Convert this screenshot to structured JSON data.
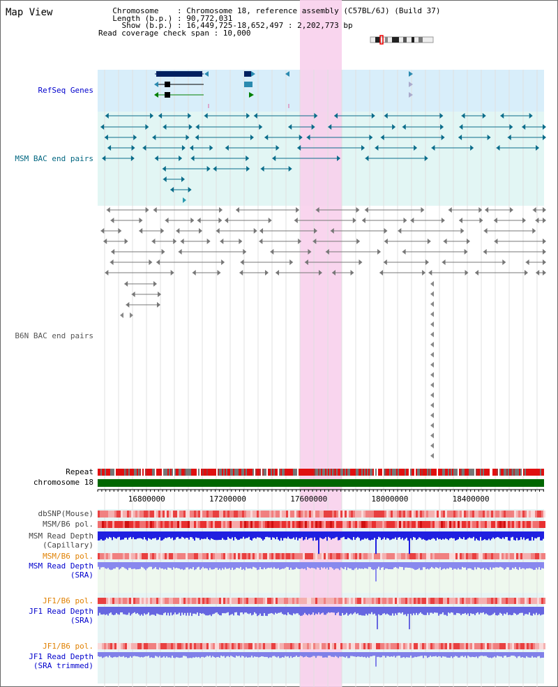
{
  "view_title": "Map View",
  "info": {
    "chromosome_line": "  Chromosome    : Chromosome 18, reference assembly (C57BL/6J) (Build 37)",
    "length_line": "  Length (b.p.) : 90,772,031",
    "show_line": "    Show (b.p.) : 16,449,725-18,652,497 : 2,202,773 bp",
    "coverage_line": "Read coverage check span : 10,000"
  },
  "tracks": {
    "refseq": "RefSeq Genes",
    "msm_bac": "MSM BAC end pairs",
    "b6n_bac": "B6N BAC end pairs",
    "repeat": "Repeat",
    "chrom": "chromosome 18",
    "dbsnp": "dbSNP(Mouse)",
    "msm_b6_pol": "MSM/B6 pol.",
    "msm_depth_cap_1": "MSM Read Depth",
    "msm_depth_cap_2": "(Capillary)",
    "msm_b6_pol_2": "MSM/B6 pol.",
    "msm_depth_sra_1": "MSM Read Depth",
    "msm_depth_sra_2": "(SRA)",
    "jf1_b6_pol": "JF1/B6 pol.",
    "jf1_depth_sra_1": "JF1 Read Depth",
    "jf1_depth_sra_2": "(SRA)",
    "jf1_b6_pol_2": "JF1/B6 pol.",
    "jf1_depth_trim_1": "JF1 Read Depth",
    "jf1_depth_trim_2": "(SRA trimmed)"
  },
  "axis": {
    "ticks": [
      "16800000",
      "17200000",
      "17600000",
      "18000000",
      "18400000"
    ],
    "tick_values": [
      16800000,
      17200000,
      17600000,
      18000000,
      18400000
    ],
    "start": 16449725,
    "end": 18652497
  },
  "colors": {
    "refseq_label": "#0000cc",
    "msm_label": "#006680",
    "b6n_label": "#555555",
    "pol_label_orange": "#e08000",
    "depth_label_blue": "#0000cc",
    "highlight": "#f8d0ec",
    "refseq_bg": "#d8eefa",
    "msm_bg": "#e2f6f4",
    "chrom_green": "#006600"
  }
}
